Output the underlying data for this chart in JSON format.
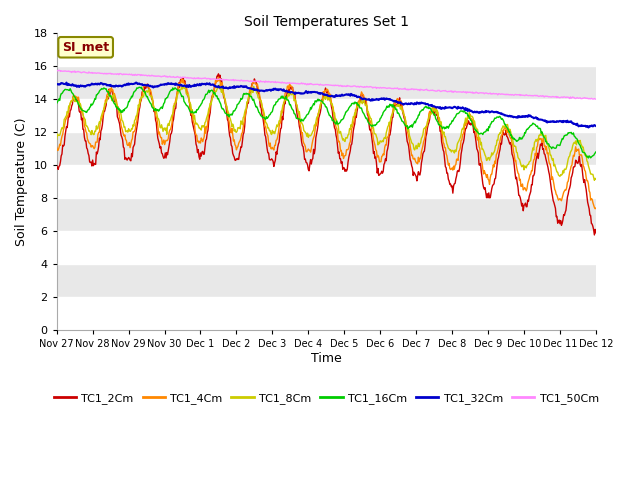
{
  "title": "Soil Temperatures Set 1",
  "xlabel": "Time",
  "ylabel": "Soil Temperature (C)",
  "ylim": [
    0,
    18
  ],
  "yticks": [
    0,
    2,
    4,
    6,
    8,
    10,
    12,
    14,
    16,
    18
  ],
  "annotation": "SI_met",
  "fig_bg": "#ffffff",
  "plot_bg_light": "#ffffff",
  "plot_bg_dark": "#e8e8e8",
  "series": {
    "TC1_2Cm": {
      "color": "#cc0000",
      "lw": 1.0
    },
    "TC1_4Cm": {
      "color": "#ff8800",
      "lw": 1.0
    },
    "TC1_8Cm": {
      "color": "#cccc00",
      "lw": 1.0
    },
    "TC1_16Cm": {
      "color": "#00cc00",
      "lw": 1.0
    },
    "TC1_32Cm": {
      "color": "#0000cc",
      "lw": 1.5
    },
    "TC1_50Cm": {
      "color": "#ff88ff",
      "lw": 1.0
    }
  },
  "x_tick_labels": [
    "Nov 27",
    "Nov 28",
    "Nov 29",
    "Nov 30",
    "Dec 1",
    "Dec 2",
    "Dec 3",
    "Dec 4",
    "Dec 5",
    "Dec 6",
    "Dec 7",
    "Dec 8",
    "Dec 9",
    "Dec 10",
    "Dec 11",
    "Dec 12"
  ]
}
